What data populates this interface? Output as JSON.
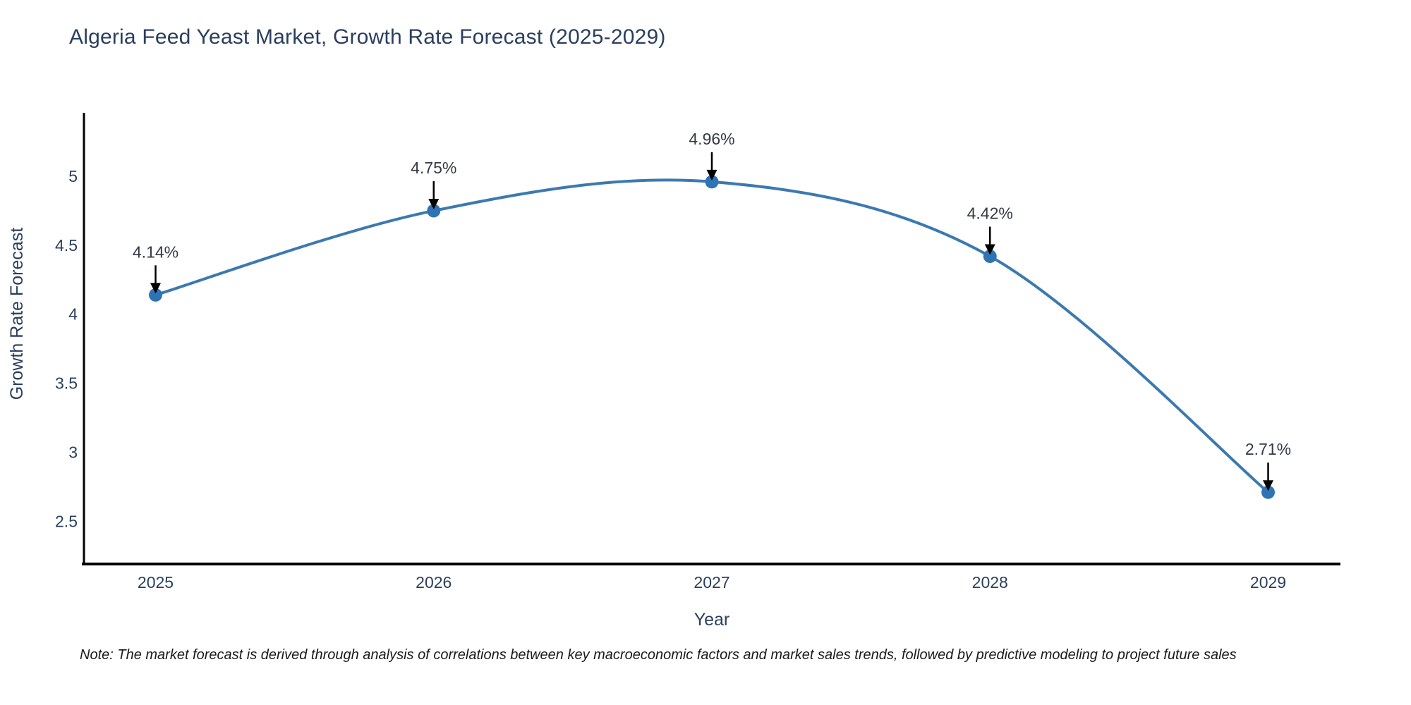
{
  "note": "Note: The market forecast is derived through analysis of correlations between key macroeconomic factors and market sales trends, followed by predictive modeling to project future sales",
  "chart_data": {
    "type": "line",
    "title": "Algeria Feed Yeast Market, Growth Rate Forecast (2025-2029)",
    "xlabel": "Year",
    "ylabel": "Growth Rate Forecast",
    "x": [
      2025,
      2026,
      2027,
      2028,
      2029
    ],
    "series": [
      {
        "name": "Growth Rate Forecast",
        "values": [
          4.14,
          4.75,
          4.96,
          4.42,
          2.71
        ]
      }
    ],
    "point_labels": [
      "4.14%",
      "4.75%",
      "4.96%",
      "4.42%",
      "2.71%"
    ],
    "xtick_labels": [
      "2025",
      "2026",
      "2027",
      "2028",
      "2029"
    ],
    "ytick_values": [
      2.5,
      3,
      3.5,
      4,
      4.5,
      5
    ],
    "ytick_labels": [
      "2.5",
      "3",
      "3.5",
      "4",
      "4.5",
      "5"
    ],
    "xlim": [
      2024.74,
      2029.26
    ],
    "ylim": [
      2.19,
      5.46
    ],
    "grid": false,
    "legend_position": "none",
    "line_shape": "spline",
    "annotation_arrows": true,
    "colors": {
      "line": "#3c79b0",
      "marker": "#2e74b5",
      "axis": "#000000",
      "chart_text": "#2a3f5f",
      "annotation_text": "#333a44",
      "arrow": "#000000",
      "note": "#1a1a1a",
      "background": "#ffffff"
    }
  }
}
